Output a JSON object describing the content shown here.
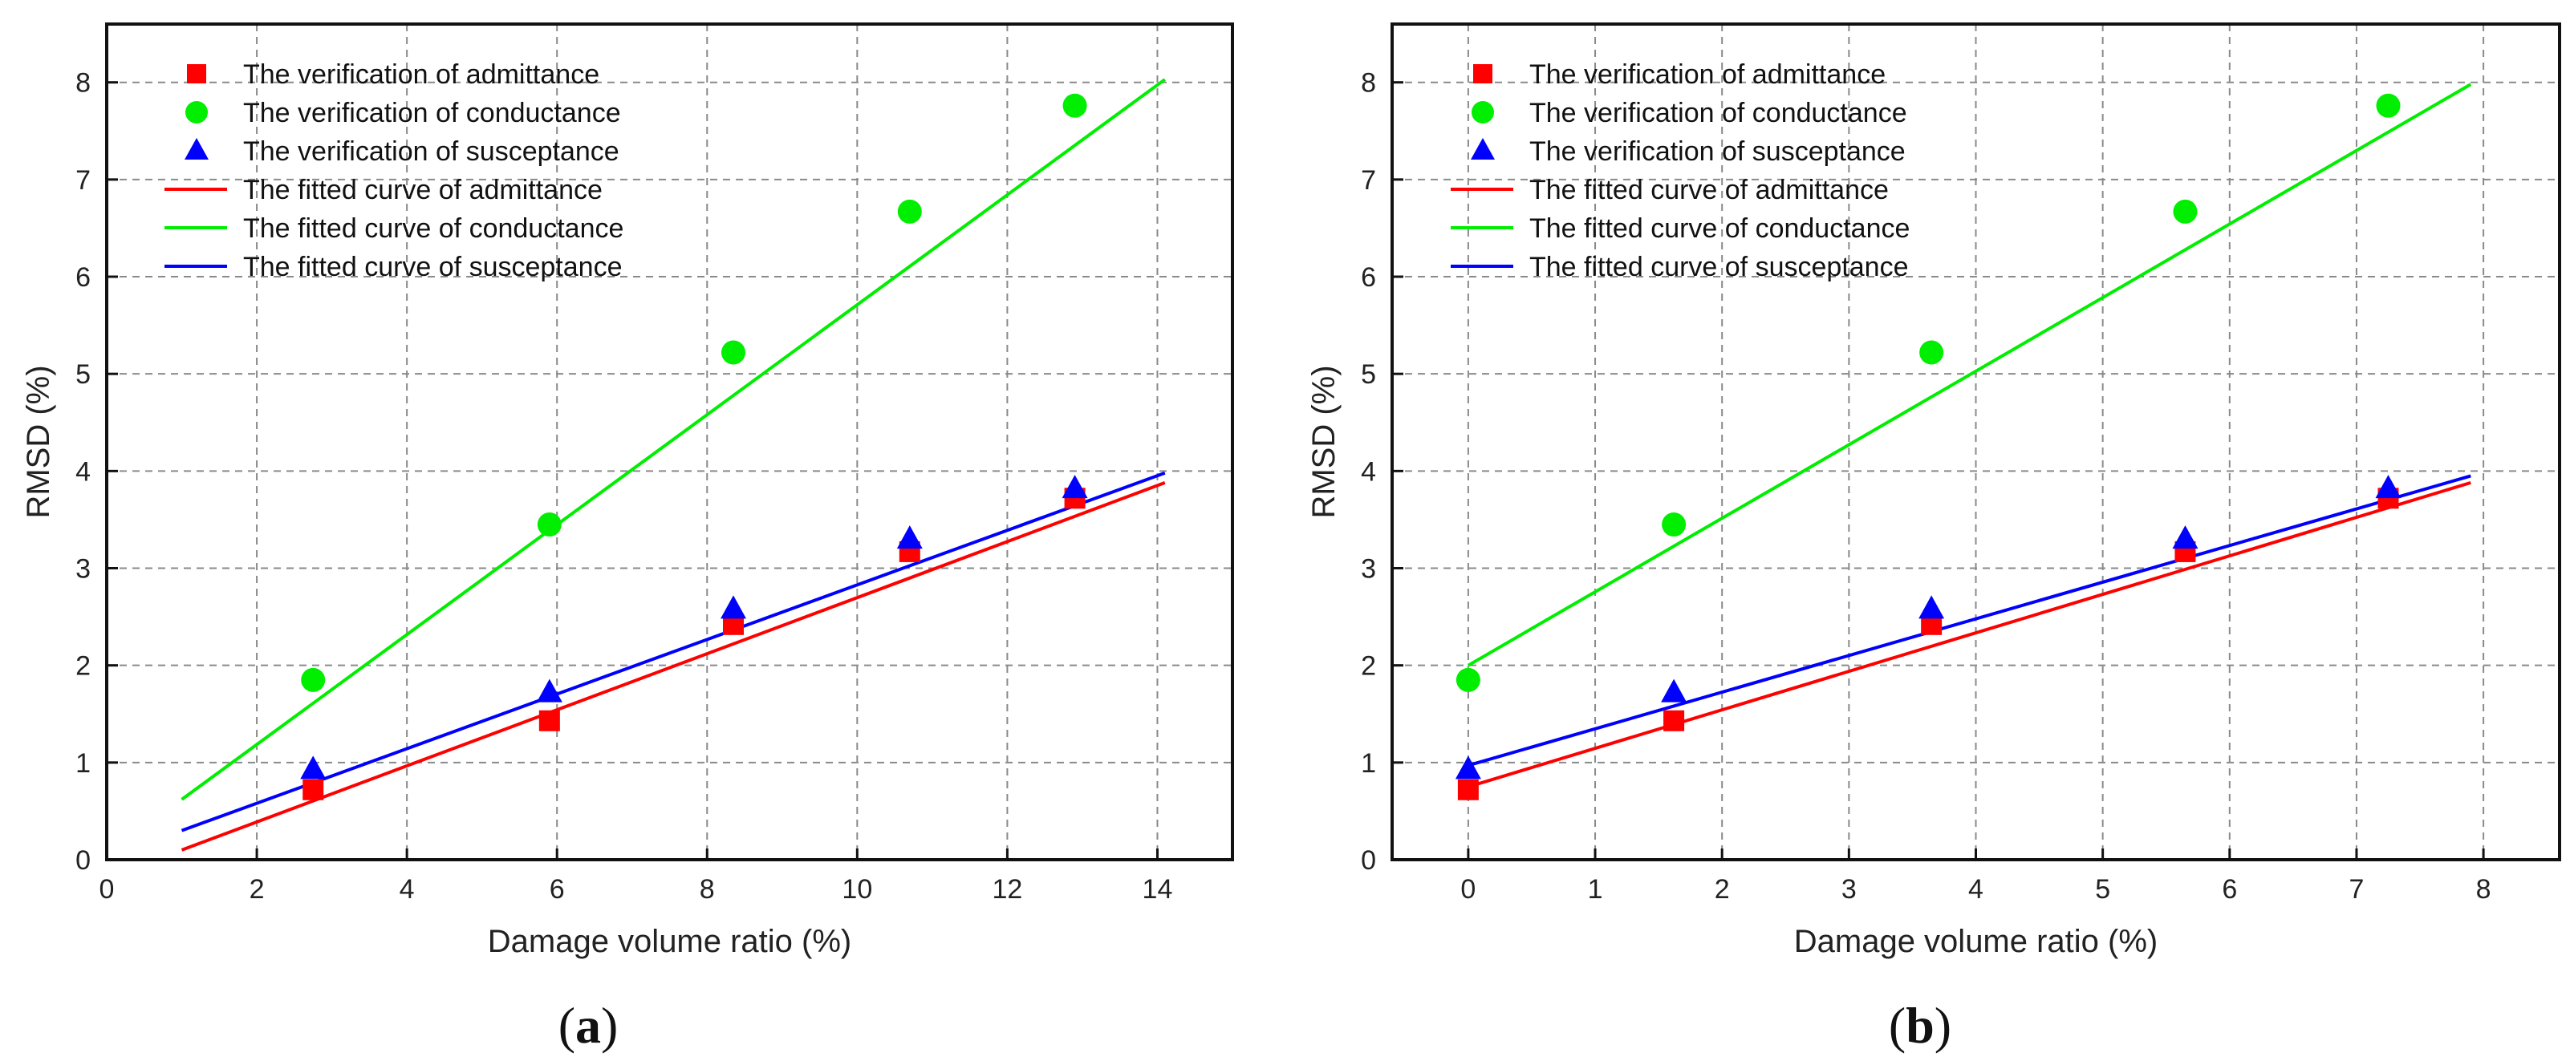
{
  "chart_data": [
    {
      "type": "scatter",
      "panel_label": "a",
      "xlabel": "Damage volume ratio (%)",
      "ylabel": "RMSD (%)",
      "xlim": [
        0,
        15
      ],
      "ylim": [
        0,
        8.6
      ],
      "xticks": [
        0,
        2,
        4,
        6,
        8,
        10,
        12,
        14
      ],
      "yticks": [
        0,
        1,
        2,
        3,
        4,
        5,
        6,
        7,
        8
      ],
      "grid": true,
      "legend_position": "top-left",
      "points": [
        {
          "name": "The verification of admittance",
          "marker": "square",
          "color": "#ff0000",
          "x": [
            2.75,
            5.9,
            8.35,
            10.7,
            12.9
          ],
          "y": [
            0.72,
            1.43,
            2.42,
            3.17,
            3.72
          ]
        },
        {
          "name": "The verification of conductance",
          "marker": "circle",
          "color": "#00ee00",
          "x": [
            2.75,
            5.9,
            8.35,
            10.7,
            12.9
          ],
          "y": [
            1.85,
            3.45,
            5.22,
            6.67,
            7.76
          ]
        },
        {
          "name": "The verification of susceptance",
          "marker": "triangle",
          "color": "#0000ff",
          "x": [
            2.75,
            5.9,
            8.35,
            10.7,
            12.9
          ],
          "y": [
            0.93,
            1.72,
            2.58,
            3.3,
            3.82
          ]
        }
      ],
      "lines": [
        {
          "name": "The fitted curve of admittance",
          "color": "#ff0000",
          "x": [
            1,
            14.1
          ],
          "y": [
            0.1,
            3.88
          ]
        },
        {
          "name": "The fitted curve of conductance",
          "color": "#00ee00",
          "x": [
            1,
            14.1
          ],
          "y": [
            0.62,
            8.03
          ]
        },
        {
          "name": "The fitted curve of susceptance",
          "color": "#0000ff",
          "x": [
            1,
            14.1
          ],
          "y": [
            0.3,
            3.98
          ]
        }
      ]
    },
    {
      "type": "scatter",
      "panel_label": "b",
      "xlabel": "Damage volume ratio (%)",
      "ylabel": "RMSD (%)",
      "xlim": [
        -0.6,
        8.6
      ],
      "ylim": [
        0,
        8.6
      ],
      "xticks": [
        0,
        1,
        2,
        3,
        4,
        5,
        6,
        7,
        8
      ],
      "yticks": [
        0,
        1,
        2,
        3,
        4,
        5,
        6,
        7,
        8
      ],
      "grid": true,
      "legend_position": "top-left",
      "points": [
        {
          "name": "The verification of admittance",
          "marker": "square",
          "color": "#ff0000",
          "x": [
            0,
            1.62,
            3.65,
            5.65,
            7.25
          ],
          "y": [
            0.72,
            1.43,
            2.42,
            3.17,
            3.72
          ]
        },
        {
          "name": "The verification of conductance",
          "marker": "circle",
          "color": "#00ee00",
          "x": [
            0,
            1.62,
            3.65,
            5.65,
            7.25
          ],
          "y": [
            1.85,
            3.45,
            5.22,
            6.67,
            7.76
          ]
        },
        {
          "name": "The verification of susceptance",
          "marker": "triangle",
          "color": "#0000ff",
          "x": [
            0,
            1.62,
            3.65,
            5.65,
            7.25
          ],
          "y": [
            0.93,
            1.72,
            2.58,
            3.3,
            3.82
          ]
        }
      ],
      "lines": [
        {
          "name": "The fitted curve of admittance",
          "color": "#ff0000",
          "x": [
            0,
            7.9
          ],
          "y": [
            0.75,
            3.88
          ]
        },
        {
          "name": "The fitted curve of conductance",
          "color": "#00ee00",
          "x": [
            0,
            7.9
          ],
          "y": [
            2.0,
            7.98
          ]
        },
        {
          "name": "The fitted curve of susceptance",
          "color": "#0000ff",
          "x": [
            0,
            7.9
          ],
          "y": [
            0.97,
            3.95
          ]
        }
      ]
    }
  ]
}
